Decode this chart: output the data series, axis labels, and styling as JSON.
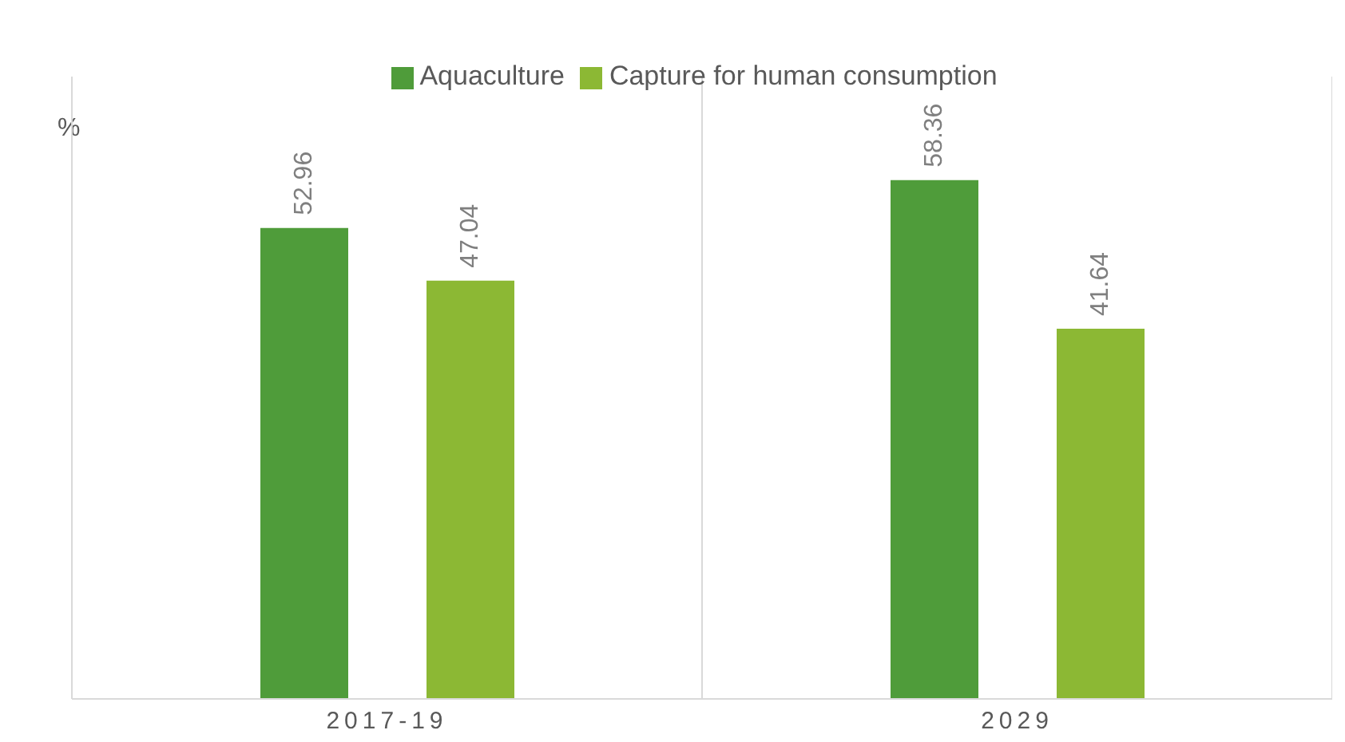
{
  "chart_data": {
    "type": "bar",
    "ylabel": "%",
    "categories": [
      "2017-19",
      "2029"
    ],
    "series": [
      {
        "name": "Aquaculture",
        "color": "#4f9c3a",
        "values": [
          52.96,
          58.36
        ]
      },
      {
        "name": "Capture for human consumption",
        "color": "#8cb834",
        "values": [
          47.04,
          41.64
        ]
      }
    ],
    "ylim": [
      0,
      70
    ],
    "data_labels": true,
    "grid": "x",
    "legend": "top"
  }
}
